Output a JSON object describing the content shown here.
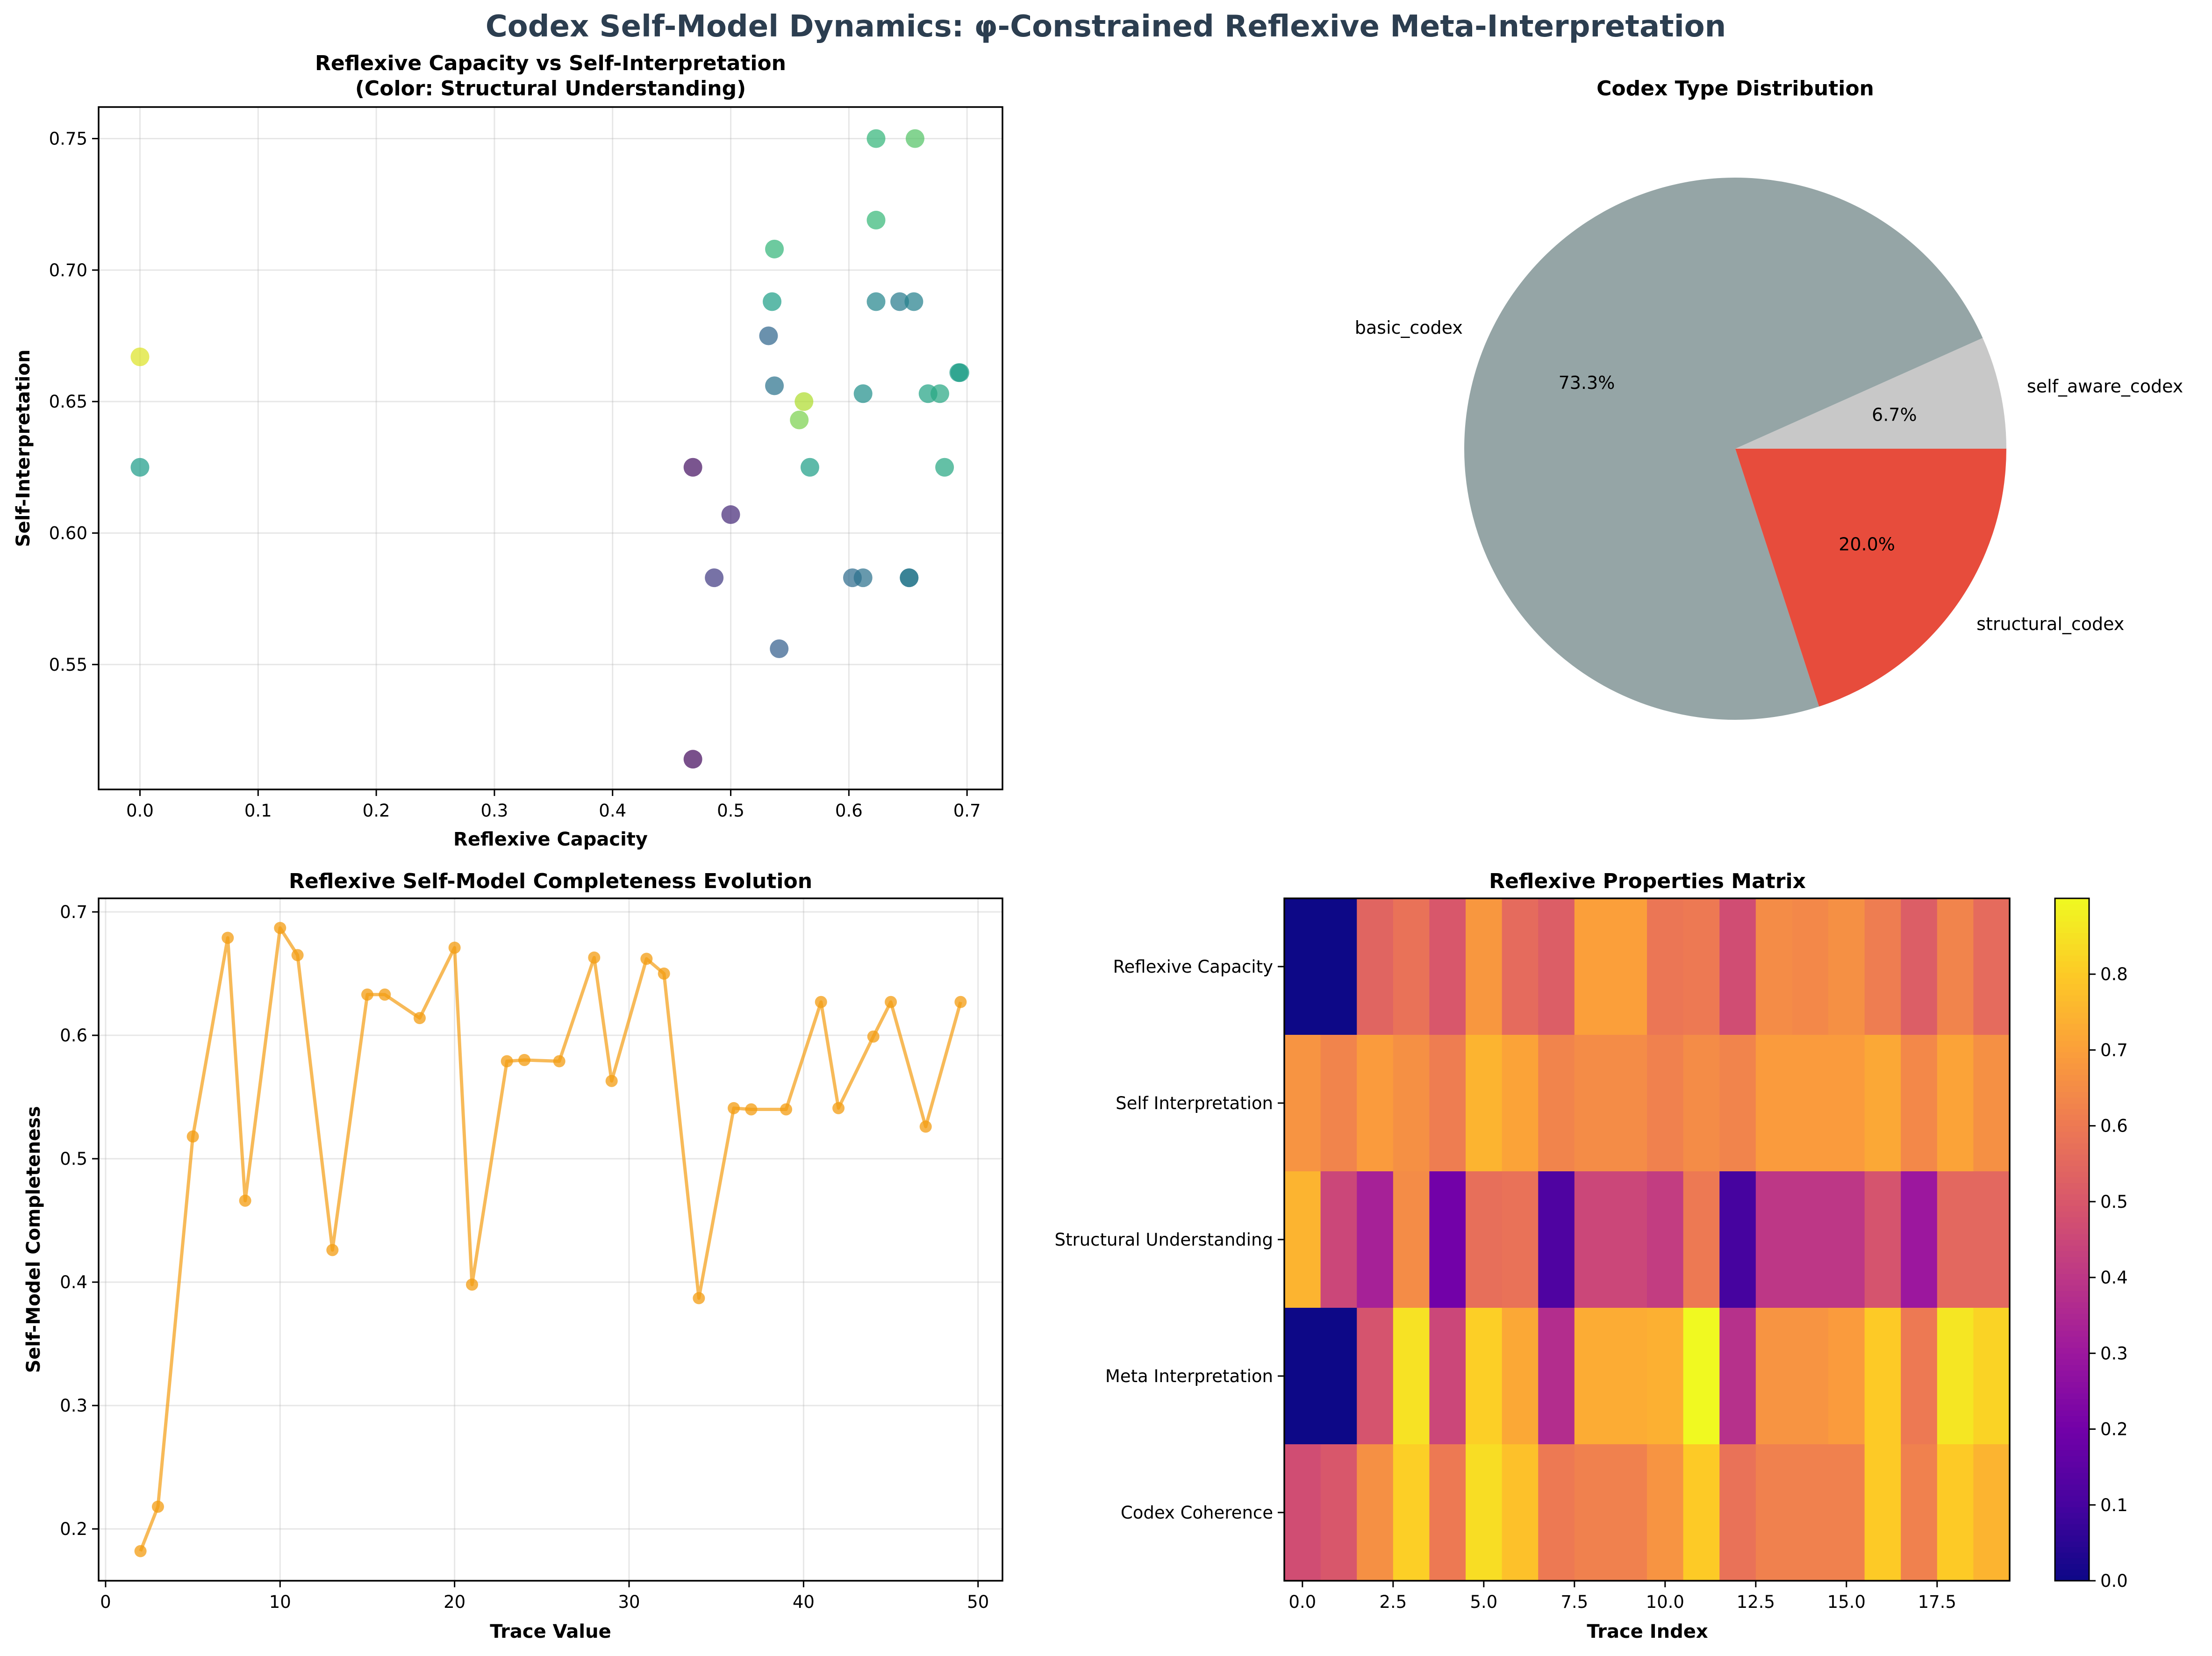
{
  "suptitle": "Codex Self-Model Dynamics: φ-Constrained Reflexive Meta-Interpretation",
  "chart_data": [
    {
      "type": "scatter",
      "title_line1": "Reflexive Capacity vs Self-Interpretation",
      "title_line2": "(Color: Structural Understanding)",
      "xlabel": "Reflexive Capacity",
      "ylabel": "Self-Interpretation",
      "xlim": [
        -0.035,
        0.73
      ],
      "ylim": [
        0.5025,
        0.762
      ],
      "xticks": [
        0.0,
        0.1,
        0.2,
        0.3,
        0.4,
        0.5,
        0.6,
        0.7
      ],
      "yticks": [
        0.55,
        0.6,
        0.65,
        0.7,
        0.75
      ],
      "colormap": "viridis",
      "color_range": [
        0.0,
        1.0
      ],
      "points": [
        {
          "x": 0.0,
          "y": 0.667,
          "c": 0.95
        },
        {
          "x": 0.0,
          "y": 0.625,
          "c": 0.55
        },
        {
          "x": 0.468,
          "y": 0.625,
          "c": 0.05
        },
        {
          "x": 0.468,
          "y": 0.514,
          "c": 0.03
        },
        {
          "x": 0.5,
          "y": 0.607,
          "c": 0.12
        },
        {
          "x": 0.486,
          "y": 0.583,
          "c": 0.18
        },
        {
          "x": 0.532,
          "y": 0.675,
          "c": 0.33
        },
        {
          "x": 0.537,
          "y": 0.656,
          "c": 0.38
        },
        {
          "x": 0.541,
          "y": 0.556,
          "c": 0.3
        },
        {
          "x": 0.535,
          "y": 0.688,
          "c": 0.56
        },
        {
          "x": 0.537,
          "y": 0.708,
          "c": 0.66
        },
        {
          "x": 0.558,
          "y": 0.643,
          "c": 0.8
        },
        {
          "x": 0.562,
          "y": 0.65,
          "c": 0.88
        },
        {
          "x": 0.567,
          "y": 0.625,
          "c": 0.56
        },
        {
          "x": 0.603,
          "y": 0.583,
          "c": 0.35
        },
        {
          "x": 0.612,
          "y": 0.583,
          "c": 0.37
        },
        {
          "x": 0.612,
          "y": 0.653,
          "c": 0.5
        },
        {
          "x": 0.623,
          "y": 0.688,
          "c": 0.46
        },
        {
          "x": 0.623,
          "y": 0.719,
          "c": 0.67
        },
        {
          "x": 0.623,
          "y": 0.75,
          "c": 0.66
        },
        {
          "x": 0.643,
          "y": 0.688,
          "c": 0.42
        },
        {
          "x": 0.651,
          "y": 0.583,
          "c": 0.4
        },
        {
          "x": 0.651,
          "y": 0.583,
          "c": 0.4
        },
        {
          "x": 0.655,
          "y": 0.688,
          "c": 0.44
        },
        {
          "x": 0.656,
          "y": 0.75,
          "c": 0.73
        },
        {
          "x": 0.667,
          "y": 0.653,
          "c": 0.58
        },
        {
          "x": 0.677,
          "y": 0.653,
          "c": 0.6
        },
        {
          "x": 0.681,
          "y": 0.625,
          "c": 0.6
        },
        {
          "x": 0.693,
          "y": 0.661,
          "c": 0.55
        },
        {
          "x": 0.694,
          "y": 0.661,
          "c": 0.56
        }
      ]
    },
    {
      "type": "pie",
      "title": "Codex Type Distribution",
      "slices": [
        {
          "label": "self_aware_codex",
          "value": 6.7,
          "pct_label": "6.7%",
          "color": "#c8c8c8"
        },
        {
          "label": "basic_codex",
          "value": 73.3,
          "pct_label": "73.3%",
          "color": "#95a5a6"
        },
        {
          "label": "structural_codex",
          "value": 20.0,
          "pct_label": "20.0%",
          "color": "#e74c3c"
        }
      ]
    },
    {
      "type": "line",
      "title": "Reflexive Self-Model Completeness Evolution",
      "xlabel": "Trace Value",
      "ylabel": "Self-Model Completeness",
      "color": "#f39c12",
      "xlim": [
        -0.4,
        51.4
      ],
      "ylim": [
        0.158,
        0.711
      ],
      "xticks": [
        0,
        10,
        20,
        30,
        40,
        50
      ],
      "yticks": [
        0.2,
        0.3,
        0.4,
        0.5,
        0.6,
        0.7
      ],
      "x": [
        2,
        3,
        5,
        7,
        8,
        10,
        11,
        13,
        15,
        16,
        18,
        20,
        21,
        23,
        24,
        26,
        28,
        29,
        31,
        32,
        34,
        36,
        37,
        39,
        41,
        42,
        44,
        45,
        47,
        49
      ],
      "y": [
        0.182,
        0.218,
        0.518,
        0.679,
        0.466,
        0.687,
        0.665,
        0.426,
        0.633,
        0.633,
        0.614,
        0.671,
        0.398,
        0.579,
        0.58,
        0.579,
        0.663,
        0.563,
        0.662,
        0.65,
        0.387,
        0.541,
        0.54,
        0.54,
        0.627,
        0.541,
        0.599,
        0.627,
        0.526,
        0.627
      ]
    },
    {
      "type": "heatmap",
      "title": "Reflexive Properties Matrix",
      "xlabel": "Trace Index",
      "colormap": "plasma",
      "vmin": 0.0,
      "vmax": 0.9,
      "xticks": [
        0.0,
        2.5,
        5.0,
        7.5,
        10.0,
        12.5,
        15.0,
        17.5
      ],
      "xtick_labels": [
        "0.0",
        "2.5",
        "5.0",
        "7.5",
        "10.0",
        "12.5",
        "15.0",
        "17.5"
      ],
      "colorbar_ticks": [
        0.0,
        0.1,
        0.2,
        0.3,
        0.4,
        0.5,
        0.6,
        0.7,
        0.8
      ],
      "colorbar_tick_labels": [
        "0.0",
        "0.1",
        "0.2",
        "0.3",
        "0.4",
        "0.5",
        "0.6",
        "0.7",
        "0.8"
      ],
      "rows": [
        "Reflexive Capacity",
        "Self Interpretation",
        "Structural Understanding",
        "Meta Interpretation",
        "Codex Coherence"
      ],
      "values": [
        [
          0.0,
          0.0,
          0.54,
          0.58,
          0.5,
          0.68,
          0.56,
          0.52,
          0.7,
          0.7,
          0.59,
          0.6,
          0.47,
          0.65,
          0.64,
          0.66,
          0.61,
          0.52,
          0.63,
          0.56
        ],
        [
          0.67,
          0.63,
          0.69,
          0.66,
          0.61,
          0.75,
          0.71,
          0.63,
          0.65,
          0.65,
          0.62,
          0.65,
          0.63,
          0.69,
          0.69,
          0.69,
          0.72,
          0.64,
          0.71,
          0.66
        ],
        [
          0.75,
          0.45,
          0.33,
          0.65,
          0.2,
          0.57,
          0.58,
          0.12,
          0.45,
          0.45,
          0.42,
          0.6,
          0.1,
          0.4,
          0.4,
          0.4,
          0.49,
          0.3,
          0.55,
          0.55
        ],
        [
          0.0,
          0.0,
          0.49,
          0.85,
          0.45,
          0.81,
          0.72,
          0.37,
          0.73,
          0.73,
          0.74,
          0.9,
          0.38,
          0.67,
          0.67,
          0.69,
          0.8,
          0.6,
          0.86,
          0.82
        ],
        [
          0.47,
          0.5,
          0.66,
          0.81,
          0.6,
          0.84,
          0.78,
          0.6,
          0.62,
          0.62,
          0.67,
          0.8,
          0.58,
          0.62,
          0.62,
          0.62,
          0.8,
          0.62,
          0.8,
          0.75
        ]
      ]
    }
  ]
}
